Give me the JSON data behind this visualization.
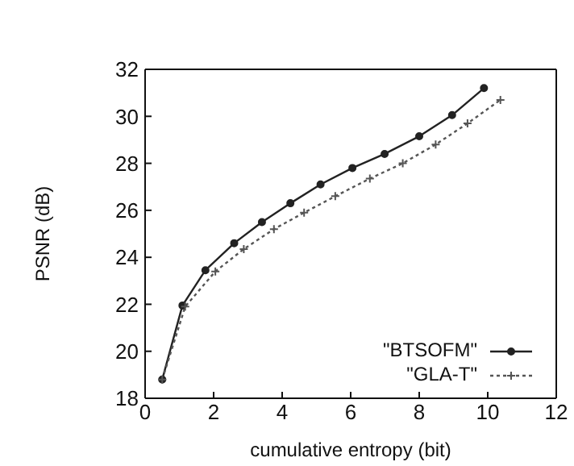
{
  "chart_data": {
    "type": "line",
    "xlabel": "cumulative entropy (bit)",
    "ylabel": "PSNR (dB)",
    "xlim": [
      0,
      12
    ],
    "xticks": [
      0,
      2,
      4,
      6,
      8,
      10,
      12
    ],
    "ylim": [
      18,
      32
    ],
    "yticks": [
      18,
      20,
      22,
      24,
      26,
      28,
      30,
      32
    ],
    "grid": false,
    "legend": "bottom right",
    "series": [
      {
        "name": "\"BTSOFM\"",
        "color": "#222222",
        "marker": "circle",
        "line_style": "solid",
        "x": [
          0.5,
          1.09,
          1.76,
          2.6,
          3.41,
          4.24,
          5.12,
          6.05,
          6.99,
          8.0,
          8.96,
          9.89
        ],
        "values": [
          18.8,
          21.95,
          23.45,
          24.6,
          25.5,
          26.3,
          27.1,
          27.8,
          28.4,
          29.15,
          30.05,
          31.2
        ]
      },
      {
        "name": "\"GLA-T\"",
        "color": "#555555",
        "marker": "cross",
        "line_style": "dotted",
        "x": [
          0.5,
          1.17,
          2.05,
          2.88,
          3.76,
          4.64,
          5.55,
          6.56,
          7.52,
          8.48,
          9.41,
          10.37
        ],
        "values": [
          18.8,
          21.9,
          23.4,
          24.35,
          25.2,
          25.9,
          26.6,
          27.35,
          28.0,
          28.8,
          29.7,
          30.7
        ]
      }
    ]
  }
}
